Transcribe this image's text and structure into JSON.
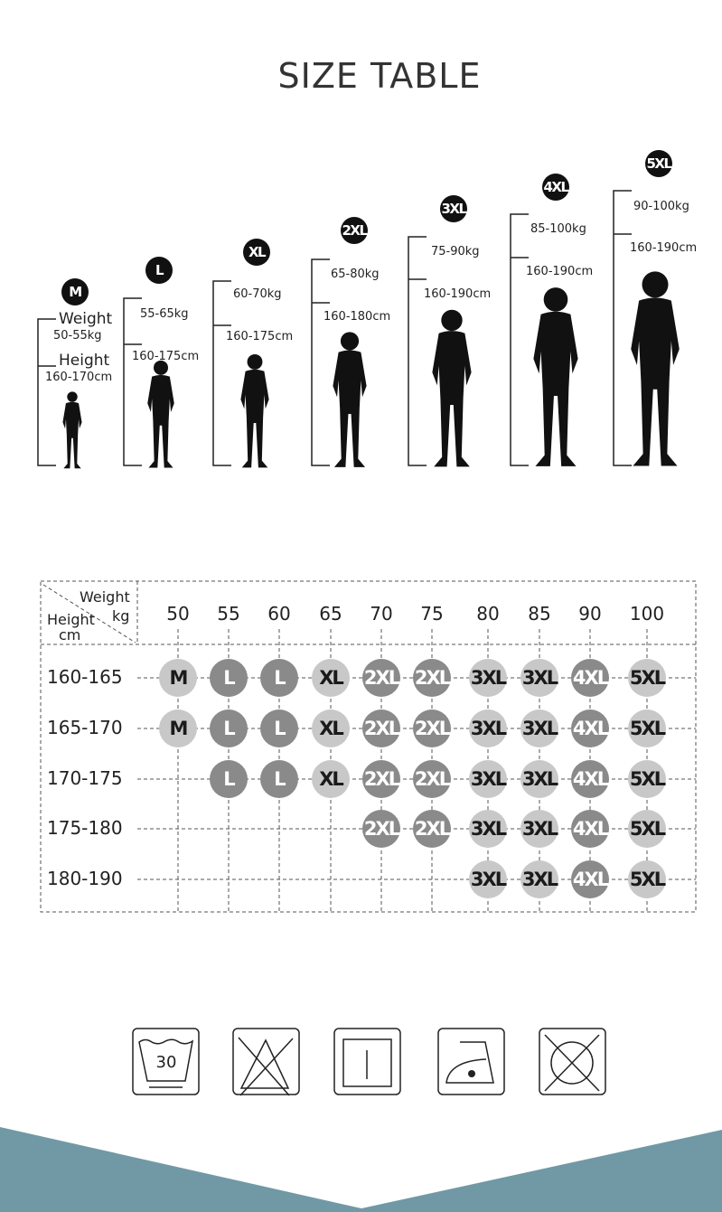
{
  "title": "SIZE TABLE",
  "figures": [
    {
      "size": "M",
      "weight_label": "Weight",
      "weight": "50-55kg",
      "height_label": "Height",
      "height": "160-170cm"
    },
    {
      "size": "L",
      "weight": "55-65kg",
      "height": "160-175cm"
    },
    {
      "size": "XL",
      "weight": "60-70kg",
      "height": "160-175cm"
    },
    {
      "size": "2XL",
      "weight": "65-80kg",
      "height": "160-180cm"
    },
    {
      "size": "3XL",
      "weight": "75-90kg",
      "height": "160-190cm"
    },
    {
      "size": "4XL",
      "weight": "85-100kg",
      "height": "160-190cm"
    },
    {
      "size": "5XL",
      "weight": "90-100kg",
      "height": "160-190cm"
    }
  ],
  "table": {
    "header": {
      "weight": "Weight",
      "kg": "kg",
      "height": "Height",
      "cm": "cm"
    },
    "columns": [
      "50",
      "55",
      "60",
      "65",
      "70",
      "75",
      "80",
      "85",
      "90",
      "100"
    ],
    "rows": [
      {
        "label": "160-165",
        "cells": [
          "M",
          "L",
          "L",
          "XL",
          "2XL",
          "2XL",
          "3XL",
          "3XL",
          "4XL",
          "5XL"
        ]
      },
      {
        "label": "165-170",
        "cells": [
          "M",
          "L",
          "L",
          "XL",
          "2XL",
          "2XL",
          "3XL",
          "3XL",
          "4XL",
          "5XL"
        ]
      },
      {
        "label": "170-175",
        "cells": [
          "",
          "L",
          "L",
          "XL",
          "2XL",
          "2XL",
          "3XL",
          "3XL",
          "4XL",
          "5XL"
        ]
      },
      {
        "label": "175-180",
        "cells": [
          "",
          "",
          "",
          "",
          "2XL",
          "2XL",
          "3XL",
          "3XL",
          "4XL",
          "5XL"
        ]
      },
      {
        "label": "180-190",
        "cells": [
          "",
          "",
          "",
          "",
          "",
          "",
          "3XL",
          "3XL",
          "4XL",
          "5XL"
        ]
      }
    ],
    "size_shades": {
      "M": "light",
      "L": "dark",
      "XL": "light",
      "2XL": "dark",
      "3XL": "light",
      "4XL": "dark",
      "5XL": "light"
    },
    "colors": {
      "light": "#c8c8c8",
      "dark": "#8a8a8a"
    }
  },
  "care_icons": [
    {
      "name": "wash-30-icon",
      "text": "30"
    },
    {
      "name": "no-bleach-icon"
    },
    {
      "name": "line-dry-icon"
    },
    {
      "name": "iron-low-icon"
    },
    {
      "name": "no-tumble-dry-icon"
    }
  ],
  "colors": {
    "footer": "#7099a5",
    "badge": "#111111"
  }
}
